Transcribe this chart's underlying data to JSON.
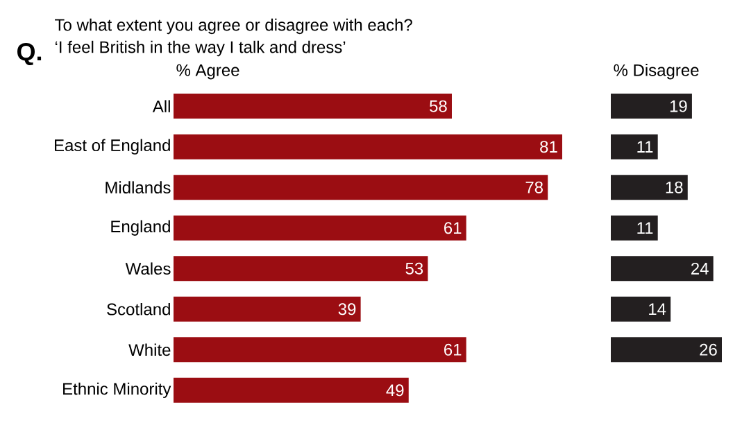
{
  "chart_data": [
    {
      "type": "bar",
      "orientation": "horizontal",
      "data_labels": true,
      "title": "To what extent you agree or disagree with each?",
      "subtitle": "‘I feel British in the way I talk and dress’",
      "annotations": [
        "Q."
      ],
      "categories": [
        "All",
        "East of England",
        "Midlands",
        "England",
        "Wales",
        "Scotland",
        "White",
        "Ethnic Minority"
      ],
      "series": [
        {
          "name": "% Agree",
          "color": "#9b0d12",
          "values": [
            58,
            81,
            78,
            61,
            53,
            39,
            61,
            49
          ]
        }
      ]
    },
    {
      "type": "bar",
      "orientation": "horizontal",
      "data_labels": true,
      "tick_labels": false,
      "categories": [
        null,
        null,
        null,
        null,
        null,
        null,
        null,
        null
      ],
      "series": [
        {
          "name": "% Disagree",
          "color": "#231f20",
          "values": [
            19,
            11,
            18,
            11,
            24,
            14,
            26,
            null
          ]
        }
      ]
    }
  ]
}
